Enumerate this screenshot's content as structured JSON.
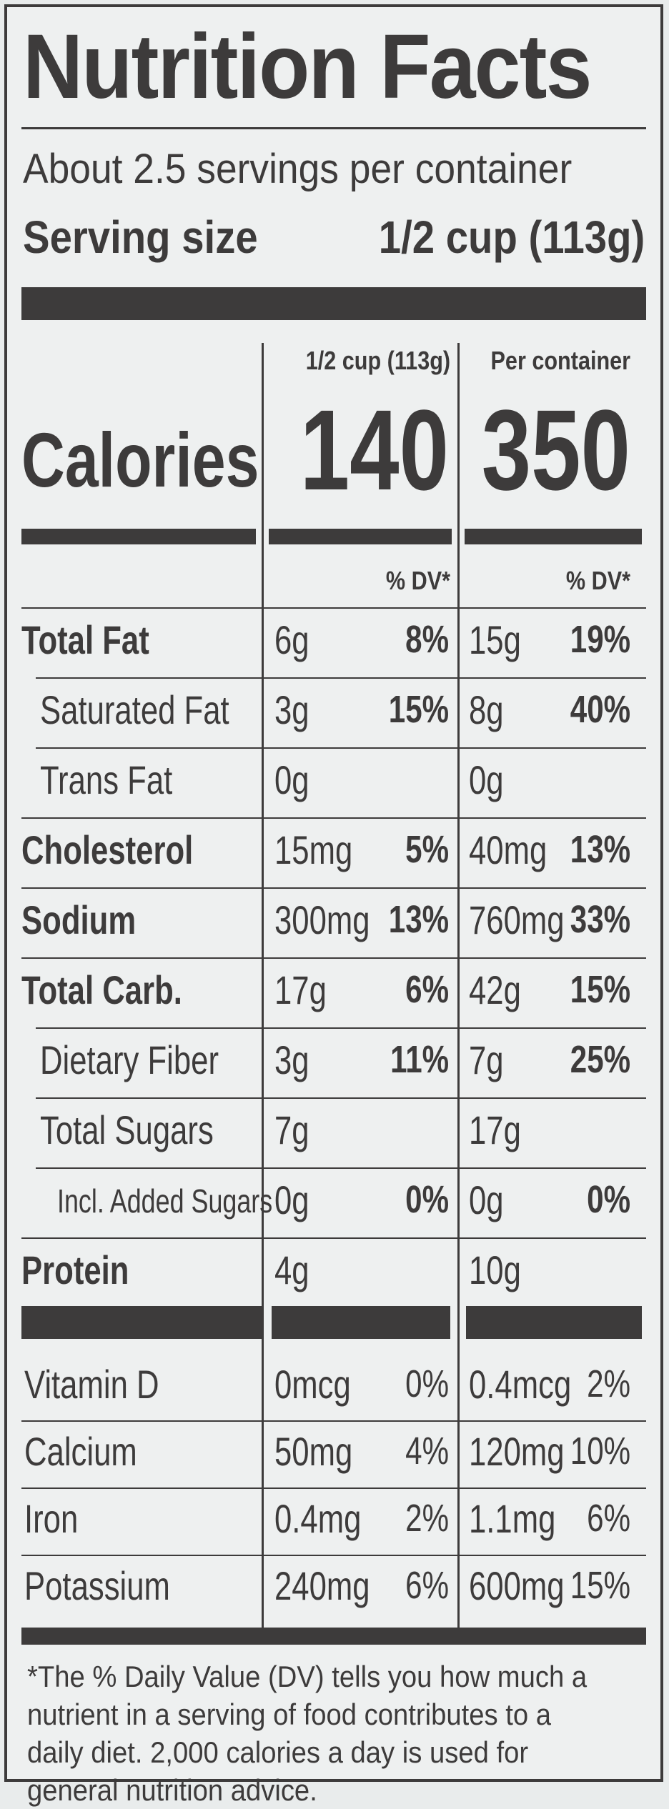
{
  "title": "Nutrition Facts",
  "servings_per_container": "About 2.5 servings per container",
  "serving_size_label": "Serving size",
  "serving_size_value": "1/2 cup (113g)",
  "columns": [
    {
      "header": "1/2 cup (113g)",
      "calories": "140"
    },
    {
      "header": "Per container",
      "calories": "350"
    }
  ],
  "calories_label": "Calories",
  "dv_header": "% DV*",
  "nutrients": [
    {
      "name": "Total Fat",
      "bold": true,
      "indent": 0,
      "a1": "6g",
      "p1": "8%",
      "a2": "15g",
      "p2": "19%"
    },
    {
      "name": "Saturated Fat",
      "bold": false,
      "indent": 1,
      "a1": "3g",
      "p1": "15%",
      "a2": "8g",
      "p2": "40%"
    },
    {
      "name": "Trans Fat",
      "bold": false,
      "indent": 1,
      "a1": "0g",
      "p1": "",
      "a2": "0g",
      "p2": ""
    },
    {
      "name": "Cholesterol",
      "bold": true,
      "indent": 0,
      "a1": "15mg",
      "p1": "5%",
      "a2": "40mg",
      "p2": "13%"
    },
    {
      "name": "Sodium",
      "bold": true,
      "indent": 0,
      "a1": "300mg",
      "p1": "13%",
      "a2": "760mg",
      "p2": "33%"
    },
    {
      "name": "Total Carb.",
      "bold": true,
      "indent": 0,
      "a1": "17g",
      "p1": "6%",
      "a2": "42g",
      "p2": "15%"
    },
    {
      "name": "Dietary Fiber",
      "bold": false,
      "indent": 1,
      "a1": "3g",
      "p1": "11%",
      "a2": "7g",
      "p2": "25%"
    },
    {
      "name": "Total Sugars",
      "bold": false,
      "indent": 1,
      "a1": "7g",
      "p1": "",
      "a2": "17g",
      "p2": ""
    },
    {
      "name": "Incl. Added Sugars",
      "bold": false,
      "indent": 2,
      "a1": "0g",
      "p1": "0%",
      "a2": "0g",
      "p2": "0%"
    },
    {
      "name": "Protein",
      "bold": true,
      "indent": 0,
      "a1": "4g",
      "p1": "",
      "a2": "10g",
      "p2": ""
    }
  ],
  "vitamins": [
    {
      "name": "Vitamin D",
      "a1": "0mcg",
      "p1": "0%",
      "a2": "0.4mcg",
      "p2": "2%"
    },
    {
      "name": "Calcium",
      "a1": "50mg",
      "p1": "4%",
      "a2": "120mg",
      "p2": "10%"
    },
    {
      "name": "Iron",
      "a1": "0.4mg",
      "p1": "2%",
      "a2": "1.1mg",
      "p2": "6%"
    },
    {
      "name": "Potassium",
      "a1": "240mg",
      "p1": "6%",
      "a2": "600mg",
      "p2": "15%"
    }
  ],
  "footnote": "*The % Daily Value (DV) tells you how much a nutrient in a serving of food contributes to a daily diet. 2,000 calories a day is used for general nutrition advice."
}
